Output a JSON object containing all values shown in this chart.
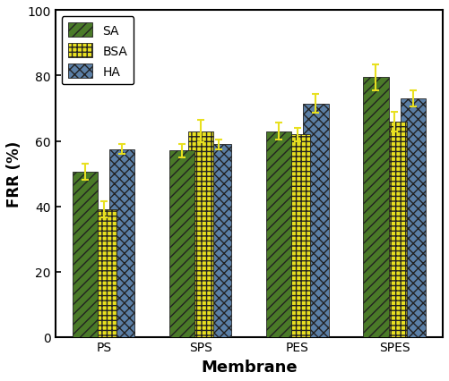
{
  "categories": [
    "PS",
    "SPS",
    "PES",
    "SPES"
  ],
  "series": {
    "SA": {
      "values": [
        50.5,
        57.0,
        63.0,
        79.5
      ],
      "errors": [
        2.5,
        2.0,
        2.5,
        4.0
      ],
      "color": "#4a7a28",
      "hatch": "///"
    },
    "BSA": {
      "values": [
        39.0,
        63.0,
        62.0,
        66.0
      ],
      "errors": [
        2.5,
        3.5,
        2.0,
        3.0
      ],
      "color": "#e8e020",
      "hatch": "+++"
    },
    "HA": {
      "values": [
        57.5,
        59.0,
        71.5,
        73.0
      ],
      "errors": [
        1.5,
        1.5,
        3.0,
        2.5
      ],
      "color": "#5b7fa6",
      "hatch": "xxx"
    }
  },
  "series_order": [
    "HA",
    "BSA",
    "SA"
  ],
  "xlabel": "Membrane",
  "ylabel": "FRR (%)",
  "ylim": [
    0,
    100
  ],
  "yticks": [
    0,
    20,
    40,
    60,
    80,
    100
  ],
  "bar_width": 0.26,
  "legend_loc": "upper left",
  "error_color": "#e8e020",
  "capsize": 3,
  "xlabel_fontsize": 13,
  "ylabel_fontsize": 12,
  "tick_fontsize": 10,
  "legend_fontsize": 10,
  "edge_color": "#222222"
}
